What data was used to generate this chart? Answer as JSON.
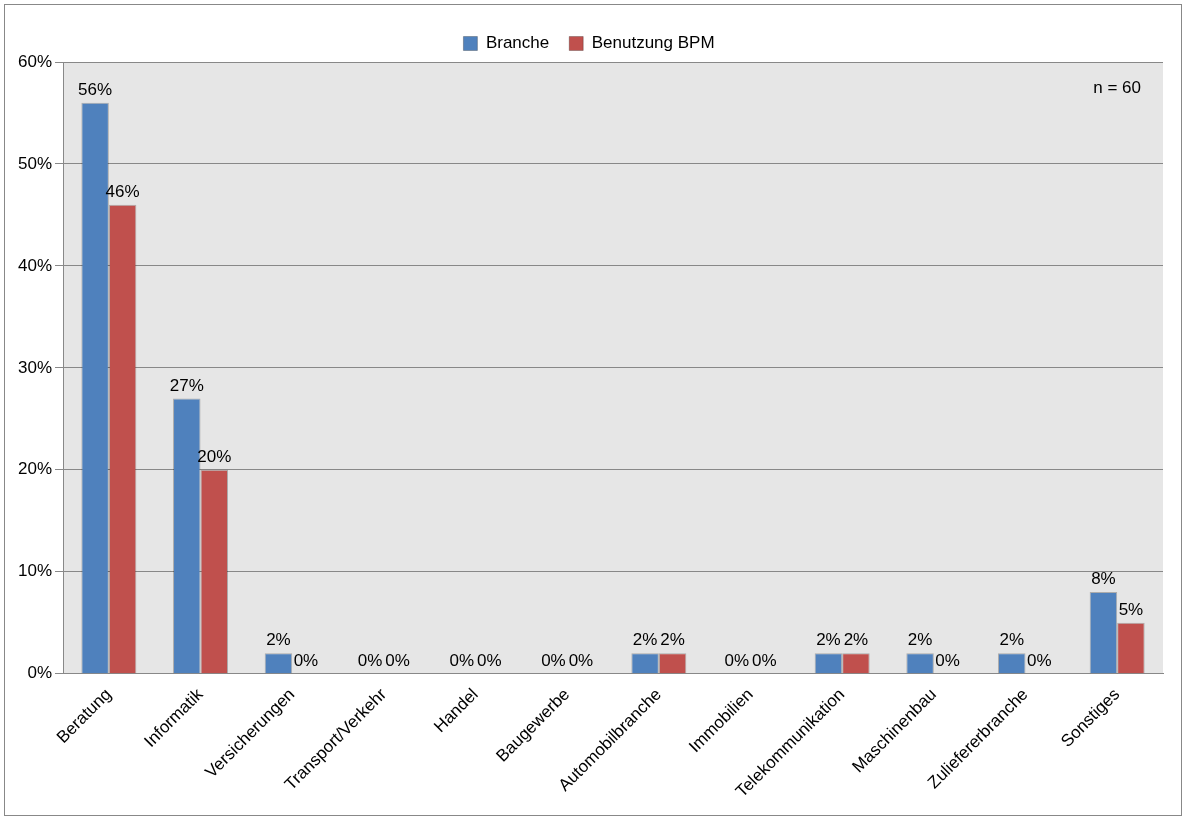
{
  "chart_data": {
    "type": "bar",
    "categories": [
      "Beratung",
      "Informatik",
      "Versicherungen",
      "Transport/Verkehr",
      "Handel",
      "Baugewerbe",
      "Automobilbranche",
      "Immobilien",
      "Telekommunikation",
      "Maschinenbau",
      "Zuliefererbranche",
      "Sonstiges"
    ],
    "series": [
      {
        "name": "Branche",
        "color": "#4f81bd",
        "values": [
          56,
          27,
          2,
          0,
          0,
          0,
          2,
          0,
          2,
          2,
          2,
          8
        ],
        "value_labels": [
          "56%",
          "27%",
          "2%",
          "0%",
          "0%",
          "0%",
          "2%",
          "0%",
          "2%",
          "2%",
          "2%",
          "8%"
        ]
      },
      {
        "name": "Benutzung BPM",
        "color": "#c0504d",
        "values": [
          46,
          20,
          0,
          0,
          0,
          0,
          2,
          0,
          2,
          0,
          0,
          5
        ],
        "value_labels": [
          "46%",
          "20%",
          "0%",
          "0%",
          "0%",
          "0%",
          "2%",
          "0%",
          "2%",
          "0%",
          "0%",
          "5%"
        ]
      }
    ],
    "ylim": [
      0,
      60
    ],
    "yticks": [
      {
        "value": 0,
        "label": "0%"
      },
      {
        "value": 10,
        "label": "10%"
      },
      {
        "value": 20,
        "label": "20%"
      },
      {
        "value": 30,
        "label": "30%"
      },
      {
        "value": 40,
        "label": "40%"
      },
      {
        "value": 50,
        "label": "50%"
      },
      {
        "value": 60,
        "label": "60%"
      }
    ],
    "grid": "y",
    "legend": "top",
    "annotations": [
      "n = 60"
    ]
  }
}
